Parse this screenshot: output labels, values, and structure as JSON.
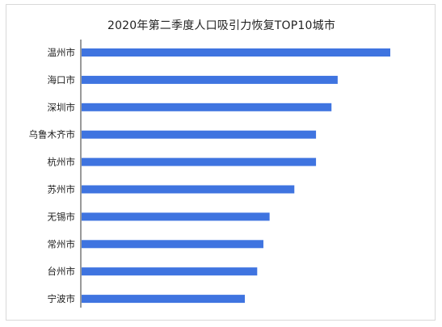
{
  "chart_data": {
    "type": "bar",
    "orientation": "horizontal",
    "title": "2020年第二季度人口吸引力恢复TOP10城市",
    "categories": [
      "温州市",
      "海口市",
      "深圳市",
      "乌鲁木齐市",
      "杭州市",
      "苏州市",
      "无锡市",
      "常州市",
      "台州市",
      "宁波市"
    ],
    "values": [
      100,
      83,
      81,
      76,
      76,
      69,
      61,
      59,
      57,
      53
    ],
    "xlim": [
      0,
      100
    ],
    "grid": false,
    "legend": "none",
    "bar_color": "#3f74e0"
  }
}
